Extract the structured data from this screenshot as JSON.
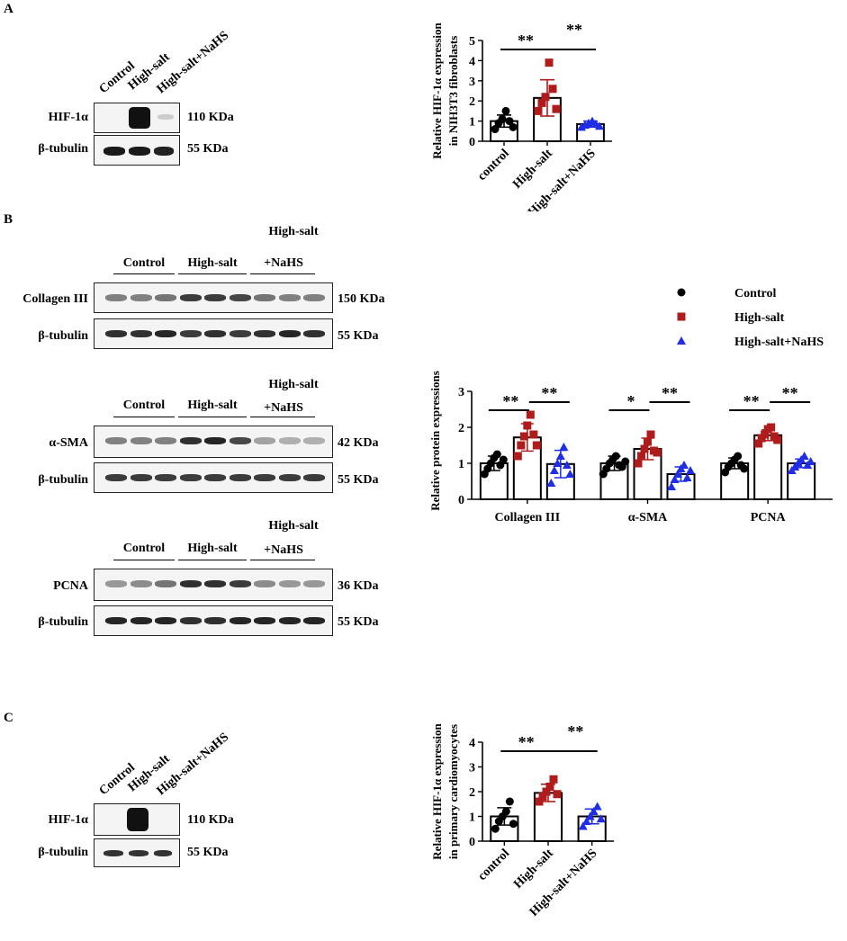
{
  "panels": {
    "a": "A",
    "b": "B",
    "c": "C"
  },
  "panel_a": {
    "lanes": [
      "Control",
      "High-salt",
      "High-salt+NaHS"
    ],
    "rows": [
      {
        "label": "HIF-1α",
        "kda": "110 KDa"
      },
      {
        "label": "β-tubulin",
        "kda": "55 KDa"
      }
    ]
  },
  "panel_b": {
    "groups": [
      "Control",
      "High-salt",
      "High-salt",
      "+NaHS"
    ],
    "blots": [
      {
        "protein": "Collagen III",
        "protein_kda": "150 KDa",
        "loading": "β-tubulin",
        "loading_kda": "55 KDa"
      },
      {
        "protein": "α-SMA",
        "protein_kda": "42 KDa",
        "loading": "β-tubulin",
        "loading_kda": "55 KDa"
      },
      {
        "protein": "PCNA",
        "protein_kda": "36 KDa",
        "loading": "β-tubulin",
        "loading_kda": "55 KDa"
      }
    ]
  },
  "panel_c": {
    "lanes": [
      "Control",
      "High-salt",
      "High-salt+NaHS"
    ],
    "rows": [
      {
        "label": "HIF-1α",
        "kda": "110 KDa"
      },
      {
        "label": "β-tubulin",
        "kda": "55 KDa"
      }
    ]
  },
  "colors": {
    "control": "#000000",
    "high_salt": "#b01c1c",
    "nahs": "#1f2ee6"
  },
  "chart_data": [
    {
      "id": "chart-a",
      "type": "bar",
      "ylabel": "Relative HIF-1α expression",
      "ylabel2": "in NIH3T3 fibroblasts",
      "categories": [
        "control",
        "High-salt",
        "High-salt+NaHS"
      ],
      "values": [
        1.0,
        2.15,
        0.85
      ],
      "errors": [
        0.3,
        0.9,
        0.15
      ],
      "points": [
        [
          0.6,
          0.9,
          1.1,
          1.5,
          1.0,
          0.7
        ],
        [
          1.5,
          1.9,
          2.2,
          3.9,
          2.6,
          1.6
        ],
        [
          0.7,
          0.8,
          0.9,
          1.0,
          0.85,
          0.75
        ]
      ],
      "ylim": [
        0,
        5
      ],
      "yticks": [
        0,
        1,
        2,
        3,
        4,
        5
      ],
      "significance": [
        "**",
        "**"
      ]
    },
    {
      "id": "chart-b",
      "type": "bar",
      "ylabel": "Relative protein expressions",
      "groups": [
        "Collagen III",
        "α-SMA",
        "PCNA"
      ],
      "series": [
        {
          "name": "Control",
          "values": [
            1.0,
            1.0,
            1.0
          ],
          "errors": [
            0.2,
            0.2,
            0.15
          ]
        },
        {
          "name": "High-salt",
          "values": [
            1.72,
            1.4,
            1.78
          ],
          "errors": [
            0.38,
            0.3,
            0.15
          ]
        },
        {
          "name": "High-salt+NaHS",
          "values": [
            0.98,
            0.7,
            1.0
          ],
          "errors": [
            0.38,
            0.2,
            0.12
          ]
        }
      ],
      "points": [
        [
          [
            0.7,
            0.85,
            1.0,
            1.15,
            1.25,
            0.95,
            1.1
          ],
          [
            1.2,
            1.5,
            1.75,
            2.05,
            2.35,
            1.8,
            1.5
          ],
          [
            0.45,
            0.8,
            1.0,
            1.2,
            1.45,
            0.95,
            0.7
          ]
        ],
        [
          [
            0.7,
            0.85,
            1.0,
            1.1,
            1.2,
            0.95,
            0.9,
            1.05
          ],
          [
            1.0,
            1.2,
            1.4,
            1.6,
            1.8,
            1.35,
            1.3
          ],
          [
            0.35,
            0.55,
            0.7,
            0.85,
            0.95,
            0.6,
            0.8
          ]
        ],
        [
          [
            0.75,
            0.9,
            1.0,
            1.1,
            1.2,
            0.95,
            0.85
          ],
          [
            1.55,
            1.7,
            1.8,
            1.95,
            2.0,
            1.75,
            1.65
          ],
          [
            0.8,
            0.9,
            1.0,
            1.1,
            1.2,
            0.95,
            1.05
          ]
        ]
      ],
      "ylim": [
        0,
        3
      ],
      "yticks": [
        0,
        1,
        2,
        3
      ],
      "significance": [
        [
          "**",
          "**"
        ],
        [
          "*",
          "**"
        ],
        [
          "**",
          "**"
        ]
      ]
    },
    {
      "id": "chart-c",
      "type": "bar",
      "ylabel": "Relative HIF-1α expression",
      "ylabel2": "in primary cardiomyocytes",
      "categories": [
        "control",
        "High-salt",
        "High-salt+NaHS"
      ],
      "values": [
        1.0,
        1.95,
        1.0
      ],
      "errors": [
        0.35,
        0.35,
        0.3
      ],
      "points": [
        [
          0.5,
          0.8,
          1.0,
          1.2,
          1.6,
          0.7
        ],
        [
          1.6,
          1.8,
          2.0,
          2.2,
          2.5,
          1.9
        ],
        [
          0.6,
          0.8,
          1.0,
          1.2,
          1.4,
          0.9
        ]
      ],
      "ylim": [
        0,
        4
      ],
      "yticks": [
        0,
        1,
        2,
        3,
        4
      ],
      "significance": [
        "**",
        "**"
      ]
    }
  ]
}
